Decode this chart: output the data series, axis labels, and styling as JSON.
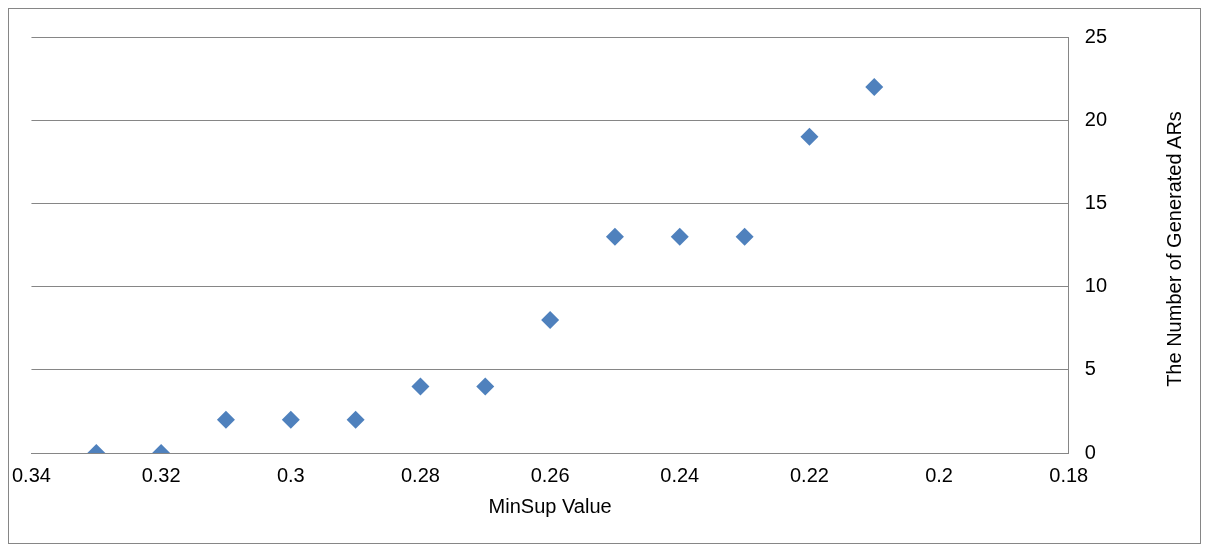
{
  "chart_data": {
    "type": "scatter",
    "xlabel": "MinSup Value",
    "ylabel": "The Number of Generated ARs",
    "x": [
      0.33,
      0.32,
      0.31,
      0.3,
      0.29,
      0.28,
      0.27,
      0.26,
      0.25,
      0.24,
      0.23,
      0.22,
      0.21
    ],
    "series": [
      {
        "color": "#4f81bd",
        "values": [
          0,
          0,
          2,
          2,
          2,
          4,
          4,
          8,
          13,
          13,
          13,
          19,
          22
        ]
      }
    ],
    "xlim": [
      0.34,
      0.18
    ],
    "xticks": [
      0.34,
      0.32,
      0.3,
      0.28,
      0.26,
      0.24,
      0.22,
      0.2,
      0.18
    ],
    "ylim": [
      0,
      25
    ],
    "yticks": [
      0,
      5,
      10,
      15,
      20,
      25
    ],
    "grid": "y",
    "legend": false,
    "marker": "diamond"
  }
}
